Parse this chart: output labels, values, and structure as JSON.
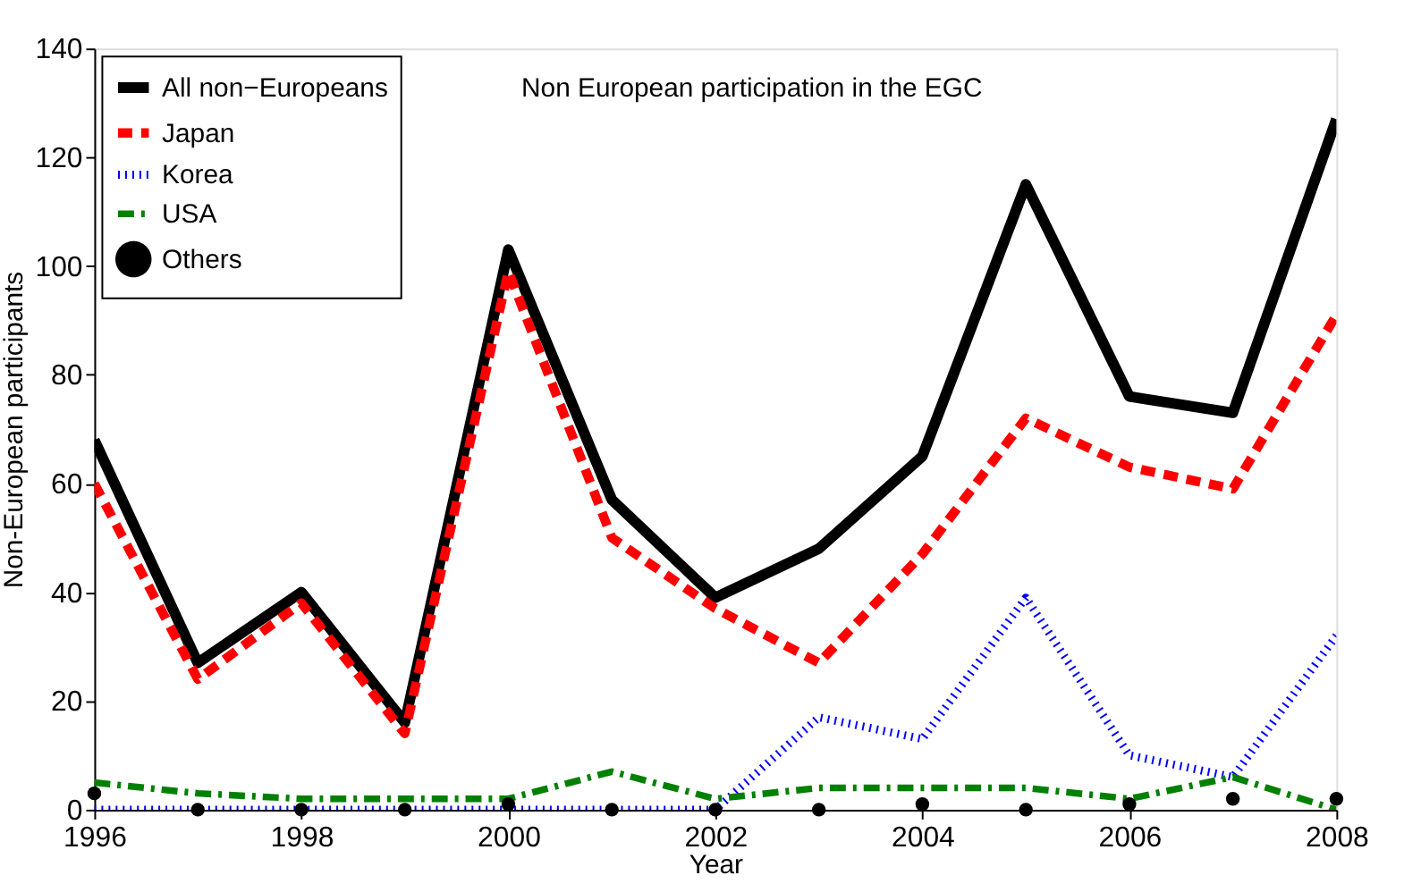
{
  "chart_data": {
    "type": "line",
    "title": "Non European participation in the EGC",
    "xlabel": "Year",
    "ylabel": "Non-European participants",
    "x": [
      1996,
      1997,
      1998,
      1999,
      2000,
      2001,
      2002,
      2003,
      2004,
      2005,
      2006,
      2007,
      2008
    ],
    "xlim": [
      1996,
      2008
    ],
    "xticks": [
      1996,
      1998,
      2000,
      2002,
      2004,
      2006,
      2008
    ],
    "ylim": [
      0,
      140
    ],
    "yticks": [
      0,
      20,
      40,
      60,
      80,
      100,
      120,
      140
    ],
    "grid": false,
    "legend": "top left",
    "series": [
      {
        "name": "All non−Europeans",
        "color": "#000000",
        "line_style": "solid",
        "values": [
          68,
          27,
          40,
          16,
          103,
          57,
          39,
          48,
          65,
          115,
          76,
          73,
          127
        ]
      },
      {
        "name": "Japan",
        "color": "#ff0000",
        "line_style": "dashed",
        "values": [
          60,
          24,
          38,
          14,
          99,
          50,
          37,
          27,
          47,
          72,
          63,
          59,
          91
        ]
      },
      {
        "name": "Korea",
        "color": "#0000ff",
        "line_style": "dotted",
        "values": [
          0,
          0,
          0,
          0,
          0,
          0,
          0,
          17,
          13,
          39,
          10,
          6,
          32
        ]
      },
      {
        "name": "USA",
        "color": "#008000",
        "line_style": "dashdot",
        "values": [
          5,
          3,
          2,
          2,
          2,
          7,
          2,
          4,
          4,
          4,
          2,
          6,
          0
        ]
      },
      {
        "name": "Others",
        "color": "#000000",
        "type": "scatter",
        "marker": "circle",
        "values": [
          3,
          0,
          0,
          0,
          1,
          0,
          0,
          0,
          1,
          0,
          1,
          2,
          2
        ]
      }
    ]
  }
}
